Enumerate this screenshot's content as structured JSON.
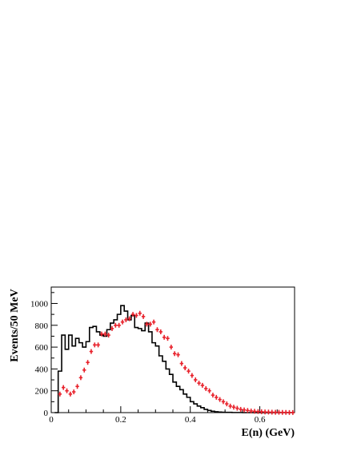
{
  "chart_data": {
    "type": "line",
    "xlabel": "E(n) (GeV)",
    "ylabel": "Events/50 MeV",
    "xlim": [
      0,
      0.7
    ],
    "ylim": [
      0,
      1150
    ],
    "x_ticks": [
      0,
      0.2,
      0.4,
      0.6
    ],
    "x_tick_labels": [
      "0",
      "0.2",
      "0.4",
      "0.6"
    ],
    "y_ticks": [
      0,
      200,
      400,
      600,
      800,
      1000
    ],
    "y_tick_labels": [
      "0",
      "200",
      "400",
      "600",
      "800",
      "1000"
    ],
    "grid": false,
    "colors": {
      "histogram": "#000000",
      "points": "#e8202a"
    },
    "series": [
      {
        "kind": "histogram-step",
        "bin_edges": [
          0.01,
          0.02,
          0.03,
          0.04,
          0.05,
          0.06,
          0.07,
          0.08,
          0.09,
          0.1,
          0.11,
          0.12,
          0.13,
          0.14,
          0.15,
          0.16,
          0.17,
          0.18,
          0.19,
          0.2,
          0.21,
          0.22,
          0.23,
          0.24,
          0.25,
          0.26,
          0.27,
          0.28,
          0.29,
          0.3,
          0.31,
          0.32,
          0.33,
          0.34,
          0.35,
          0.36,
          0.37,
          0.38,
          0.39,
          0.4,
          0.41,
          0.42,
          0.43,
          0.44,
          0.45,
          0.46,
          0.47,
          0.48,
          0.49,
          0.5,
          0.51,
          0.52,
          0.53,
          0.54,
          0.55,
          0.56,
          0.57,
          0.58,
          0.59,
          0.6,
          0.61,
          0.62,
          0.63,
          0.64,
          0.65,
          0.66,
          0.67,
          0.68,
          0.69,
          0.7
        ],
        "values": [
          0,
          380,
          710,
          580,
          710,
          610,
          680,
          640,
          600,
          650,
          780,
          790,
          740,
          710,
          700,
          760,
          820,
          850,
          900,
          980,
          930,
          850,
          890,
          780,
          770,
          750,
          820,
          740,
          640,
          610,
          520,
          470,
          400,
          350,
          280,
          240,
          210,
          170,
          140,
          100,
          80,
          60,
          45,
          30,
          20,
          12,
          8,
          5,
          3,
          2,
          2,
          1,
          1,
          1,
          0,
          0,
          0,
          0,
          0,
          0,
          0,
          0,
          0,
          0,
          0,
          0,
          0,
          0,
          0
        ]
      },
      {
        "kind": "points-with-errors",
        "x": [
          0.025,
          0.035,
          0.045,
          0.055,
          0.065,
          0.075,
          0.085,
          0.095,
          0.105,
          0.115,
          0.125,
          0.135,
          0.145,
          0.155,
          0.165,
          0.175,
          0.185,
          0.195,
          0.205,
          0.215,
          0.225,
          0.235,
          0.245,
          0.255,
          0.265,
          0.275,
          0.285,
          0.295,
          0.305,
          0.315,
          0.325,
          0.335,
          0.345,
          0.355,
          0.365,
          0.375,
          0.385,
          0.395,
          0.405,
          0.415,
          0.425,
          0.435,
          0.445,
          0.455,
          0.465,
          0.475,
          0.485,
          0.495,
          0.505,
          0.515,
          0.525,
          0.535,
          0.545,
          0.555,
          0.565,
          0.575,
          0.585,
          0.595,
          0.605,
          0.615,
          0.625,
          0.635,
          0.645,
          0.655,
          0.665,
          0.675,
          0.685,
          0.695
        ],
        "y": [
          170,
          230,
          200,
          170,
          190,
          240,
          320,
          390,
          460,
          560,
          620,
          620,
          720,
          720,
          710,
          770,
          800,
          800,
          830,
          850,
          860,
          900,
          890,
          910,
          880,
          810,
          810,
          830,
          760,
          740,
          690,
          680,
          600,
          540,
          530,
          450,
          410,
          380,
          340,
          300,
          270,
          250,
          220,
          200,
          160,
          140,
          120,
          100,
          80,
          60,
          50,
          40,
          30,
          25,
          20,
          15,
          12,
          10,
          8,
          6,
          5,
          4,
          3,
          3,
          2,
          2,
          1,
          1
        ]
      }
    ]
  }
}
